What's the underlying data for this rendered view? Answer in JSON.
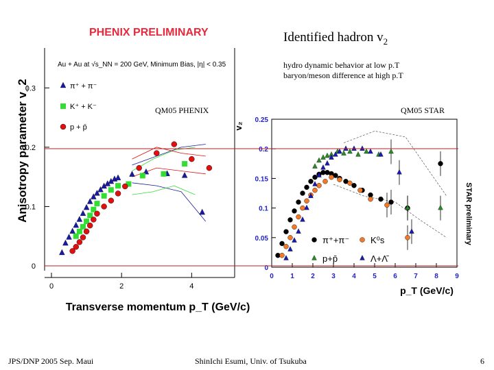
{
  "slide": {
    "title": "Identified hadron v",
    "title_sub": "2",
    "notes": [
      "hydro dynamic behavior at low p.T",
      "baryon/meson difference at  high p.T"
    ],
    "phenix_tag": "QM05 PHENIX",
    "star_tag": "QM05 STAR",
    "footer_left": "JPS/DNP 2005 Sep. Maui",
    "footer_center": "ShinIchi Esumi, Univ. of Tsukuba",
    "footer_right": "6"
  },
  "colors": {
    "phenix_banner": "#e8283c",
    "reference_line": "#b22222",
    "pion": "#1a1aa0",
    "kaon": "#33dd33",
    "proton": "#e01010",
    "star_pion": "#000000",
    "star_kaon": "#f07a2a",
    "star_proton": "#2a8a2a",
    "star_lambda": "#1a1ab0",
    "star_axis": "#2222cc"
  },
  "chart_data": [
    {
      "type": "scatter",
      "banner": "PHENIX PRELIMINARY",
      "header": "Au + Au at √s_NN = 200 GeV, Minimum Bias, |η| < 0.35",
      "xlabel": "Transverse momentum p_T (GeV/c)",
      "ylabel": "Anisotropy parameter v_2",
      "xlim": [
        0,
        4.6
      ],
      "ylim": [
        0,
        0.35
      ],
      "x_ticks": [
        "0",
        "2",
        "4"
      ],
      "y_ticks": [
        "0",
        "0.1",
        "0.2",
        "0.3"
      ],
      "legend": [
        "π⁺ + π⁻",
        "K⁺ + K⁻",
        "p + p̄"
      ],
      "legend_position": "top-left",
      "series": [
        {
          "name": "π⁺ + π⁻",
          "marker": "triangle",
          "color": "#1a1aa0",
          "x": [
            0.3,
            0.4,
            0.5,
            0.6,
            0.7,
            0.8,
            0.9,
            1.0,
            1.1,
            1.2,
            1.3,
            1.4,
            1.5,
            1.6,
            1.7,
            1.8,
            1.9,
            2.3,
            2.7,
            3.3,
            3.8,
            4.3
          ],
          "y": [
            0.022,
            0.038,
            0.048,
            0.058,
            0.068,
            0.078,
            0.088,
            0.098,
            0.108,
            0.116,
            0.122,
            0.128,
            0.134,
            0.138,
            0.142,
            0.146,
            0.148,
            0.154,
            0.158,
            0.155,
            0.152,
            0.09
          ],
          "band_upper": [
            0.17,
            0.185,
            0.2,
            0.205
          ],
          "band_lower": [
            0.14,
            0.135,
            0.125,
            0.075
          ],
          "band_x": [
            2.3,
            3.0,
            3.7,
            4.4
          ]
        },
        {
          "name": "K⁺ + K⁻",
          "marker": "square",
          "color": "#33dd33",
          "x": [
            0.7,
            0.8,
            0.9,
            1.0,
            1.1,
            1.2,
            1.3,
            1.5,
            1.7,
            1.9,
            2.2,
            2.6,
            3.2,
            3.8
          ],
          "y": [
            0.05,
            0.058,
            0.066,
            0.075,
            0.085,
            0.095,
            0.105,
            0.118,
            0.128,
            0.135,
            0.138,
            0.152,
            0.155,
            0.172
          ],
          "band_upper": [
            0.16,
            0.18,
            0.195,
            0.2
          ],
          "band_lower": [
            0.12,
            0.125,
            0.135,
            0.12
          ],
          "band_x": [
            2.3,
            2.9,
            3.5,
            4.1
          ]
        },
        {
          "name": "p + p̄",
          "marker": "circle",
          "color": "#e01010",
          "x": [
            0.6,
            0.7,
            0.8,
            0.9,
            1.0,
            1.1,
            1.2,
            1.3,
            1.5,
            1.7,
            1.9,
            2.1,
            2.5,
            3.0,
            3.5,
            4.0,
            4.5
          ],
          "y": [
            0.025,
            0.032,
            0.04,
            0.048,
            0.058,
            0.068,
            0.078,
            0.088,
            0.1,
            0.11,
            0.122,
            0.134,
            0.165,
            0.19,
            0.205,
            0.18,
            0.165
          ],
          "band_upper": [
            0.18,
            0.2,
            0.19,
            0.185
          ],
          "band_lower": [
            0.15,
            0.165,
            0.16,
            0.155
          ],
          "band_x": [
            2.3,
            3.0,
            3.7,
            4.4
          ]
        }
      ]
    },
    {
      "type": "scatter",
      "ylabel": "v₂",
      "xlabel": "p_T (GeV/c)",
      "side_label": "STAR preliminary",
      "xlim": [
        0,
        9
      ],
      "ylim": [
        0,
        0.25
      ],
      "x_ticks": [
        "0",
        "1",
        "2",
        "3",
        "4",
        "5",
        "6",
        "7",
        "8",
        "9"
      ],
      "y_ticks": [
        "0",
        "0.05",
        "0.1",
        "0.15",
        "0.2",
        "0.25"
      ],
      "legend": [
        "π⁺+π⁻",
        "K⁰s",
        "p+p̄",
        "Λ+Λ̄"
      ],
      "legend_position": "bottom-left",
      "series": [
        {
          "name": "π⁺+π⁻",
          "marker": "circle",
          "color": "#000000",
          "x": [
            0.3,
            0.5,
            0.7,
            0.9,
            1.1,
            1.3,
            1.5,
            1.7,
            1.9,
            2.1,
            2.3,
            2.5,
            2.7,
            2.9,
            3.1,
            3.3,
            3.6,
            4.0,
            4.4,
            4.8,
            5.3,
            5.8,
            6.6,
            8.2
          ],
          "y": [
            0.02,
            0.04,
            0.06,
            0.08,
            0.095,
            0.11,
            0.125,
            0.135,
            0.145,
            0.152,
            0.157,
            0.16,
            0.16,
            0.158,
            0.155,
            0.15,
            0.145,
            0.138,
            0.13,
            0.122,
            0.115,
            0.11,
            0.1,
            0.175
          ]
        },
        {
          "name": "K⁰s",
          "marker": "circle",
          "color": "#f07a2a",
          "x": [
            0.5,
            0.7,
            0.9,
            1.1,
            1.3,
            1.5,
            1.7,
            1.9,
            2.1,
            2.3,
            2.6,
            2.9,
            3.3,
            3.8,
            4.3,
            4.8,
            5.6,
            6.6
          ],
          "y": [
            0.02,
            0.035,
            0.05,
            0.068,
            0.085,
            0.1,
            0.112,
            0.122,
            0.13,
            0.138,
            0.145,
            0.152,
            0.148,
            0.142,
            0.13,
            0.115,
            0.105,
            0.05
          ]
        },
        {
          "name": "p+p̄",
          "marker": "triangle",
          "color": "#2a8a2a",
          "x": [
            2.1,
            2.3,
            2.5,
            2.7,
            2.9,
            3.2,
            3.5,
            3.8,
            4.2,
            4.6,
            5.2,
            5.8,
            6.6,
            8.2
          ],
          "y": [
            0.17,
            0.18,
            0.185,
            0.188,
            0.19,
            0.195,
            0.192,
            0.195,
            0.19,
            0.195,
            0.19,
            0.195,
            0.1,
            0.1
          ]
        },
        {
          "name": "Λ+Λ̄",
          "marker": "triangle",
          "color": "#1a1ab0",
          "x": [
            0.7,
            0.9,
            1.1,
            1.3,
            1.5,
            1.7,
            1.9,
            2.1,
            2.3,
            2.5,
            2.7,
            2.9,
            3.1,
            3.3,
            3.6,
            4.0,
            4.4,
            4.8,
            5.3,
            6.2,
            6.8
          ],
          "y": [
            0.015,
            0.03,
            0.045,
            0.06,
            0.08,
            0.1,
            0.12,
            0.14,
            0.155,
            0.168,
            0.175,
            0.185,
            0.19,
            0.195,
            0.2,
            0.2,
            0.2,
            0.195,
            0.19,
            0.16,
            0.06
          ]
        }
      ]
    }
  ]
}
